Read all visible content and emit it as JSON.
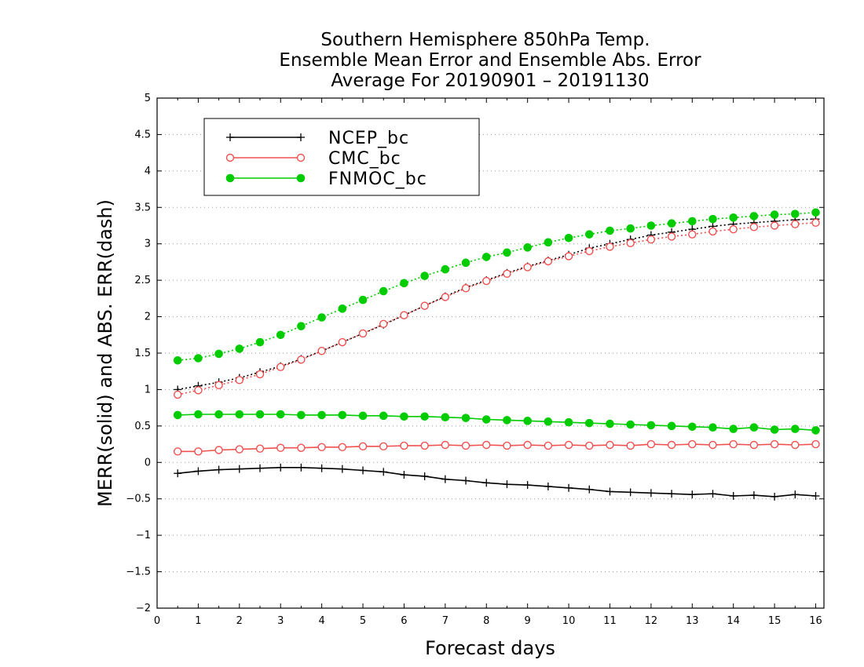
{
  "chart_data": {
    "type": "line",
    "title": [
      "Southern Hemisphere 850hPa Temp.",
      "Ensemble Mean Error and Ensemble Abs. Error",
      "Average For 20190901 – 20191130"
    ],
    "xlabel": "Forecast days",
    "ylabel": "MERR(solid) and ABS. ERR(dash)",
    "xlim": [
      0,
      16.2
    ],
    "ylim": [
      -2,
      5
    ],
    "xticks": [
      0,
      1,
      2,
      3,
      4,
      5,
      6,
      7,
      8,
      9,
      10,
      11,
      12,
      13,
      14,
      15,
      16
    ],
    "yticks": [
      -2,
      -1.5,
      -1,
      -0.5,
      0,
      0.5,
      1,
      1.5,
      2,
      2.5,
      3,
      3.5,
      4,
      4.5,
      5
    ],
    "ytick_labels": [
      "−2",
      "−1.5",
      "−1",
      "−0.5",
      "0",
      "0.5",
      "1",
      "1.5",
      "2",
      "2.5",
      "3",
      "3.5",
      "4",
      "4.5",
      "5"
    ],
    "grid": "horizontal-dotted",
    "legend_position": "top-left",
    "x": [
      0.5,
      1,
      1.5,
      2,
      2.5,
      3,
      3.5,
      4,
      4.5,
      5,
      5.5,
      6,
      6.5,
      7,
      7.5,
      8,
      8.5,
      9,
      9.5,
      10,
      10.5,
      11,
      11.5,
      12,
      12.5,
      13,
      13.5,
      14,
      14.5,
      15,
      15.5,
      16
    ],
    "series": [
      {
        "name": "NCEP_bc",
        "color": "#000000",
        "marker": "plus",
        "merr": [
          -0.15,
          -0.12,
          -0.1,
          -0.09,
          -0.08,
          -0.07,
          -0.07,
          -0.08,
          -0.09,
          -0.11,
          -0.13,
          -0.17,
          -0.19,
          -0.23,
          -0.25,
          -0.28,
          -0.3,
          -0.31,
          -0.33,
          -0.35,
          -0.37,
          -0.4,
          -0.41,
          -0.42,
          -0.43,
          -0.44,
          -0.43,
          -0.46,
          -0.45,
          -0.47,
          -0.44,
          -0.46
        ],
        "abs_err": [
          1.0,
          1.05,
          1.1,
          1.16,
          1.24,
          1.32,
          1.42,
          1.53,
          1.65,
          1.77,
          1.89,
          2.02,
          2.15,
          2.28,
          2.4,
          2.5,
          2.6,
          2.69,
          2.77,
          2.85,
          2.94,
          3.0,
          3.06,
          3.12,
          3.16,
          3.2,
          3.24,
          3.27,
          3.29,
          3.31,
          3.33,
          3.34
        ]
      },
      {
        "name": "CMC_bc",
        "color": "#f05050",
        "marker": "open-circle",
        "merr": [
          0.15,
          0.15,
          0.17,
          0.18,
          0.19,
          0.2,
          0.2,
          0.21,
          0.21,
          0.22,
          0.22,
          0.23,
          0.23,
          0.24,
          0.23,
          0.24,
          0.23,
          0.24,
          0.23,
          0.24,
          0.23,
          0.24,
          0.23,
          0.25,
          0.24,
          0.25,
          0.24,
          0.25,
          0.24,
          0.25,
          0.24,
          0.25
        ],
        "abs_err": [
          0.93,
          0.99,
          1.06,
          1.13,
          1.21,
          1.31,
          1.41,
          1.53,
          1.65,
          1.77,
          1.9,
          2.02,
          2.15,
          2.27,
          2.39,
          2.49,
          2.59,
          2.68,
          2.76,
          2.83,
          2.9,
          2.96,
          3.01,
          3.06,
          3.1,
          3.13,
          3.17,
          3.2,
          3.23,
          3.25,
          3.27,
          3.29
        ]
      },
      {
        "name": "FNMOC_bc",
        "color": "#00cc00",
        "marker": "filled-circle",
        "merr": [
          0.65,
          0.66,
          0.66,
          0.66,
          0.66,
          0.66,
          0.65,
          0.65,
          0.65,
          0.64,
          0.64,
          0.63,
          0.63,
          0.62,
          0.61,
          0.59,
          0.58,
          0.57,
          0.56,
          0.55,
          0.54,
          0.53,
          0.52,
          0.51,
          0.5,
          0.49,
          0.48,
          0.46,
          0.48,
          0.45,
          0.46,
          0.44
        ],
        "abs_err": [
          1.4,
          1.43,
          1.49,
          1.56,
          1.65,
          1.75,
          1.87,
          1.99,
          2.11,
          2.23,
          2.35,
          2.46,
          2.56,
          2.65,
          2.74,
          2.82,
          2.88,
          2.95,
          3.02,
          3.08,
          3.13,
          3.18,
          3.21,
          3.25,
          3.28,
          3.31,
          3.34,
          3.36,
          3.38,
          3.4,
          3.41,
          3.43
        ]
      }
    ]
  }
}
